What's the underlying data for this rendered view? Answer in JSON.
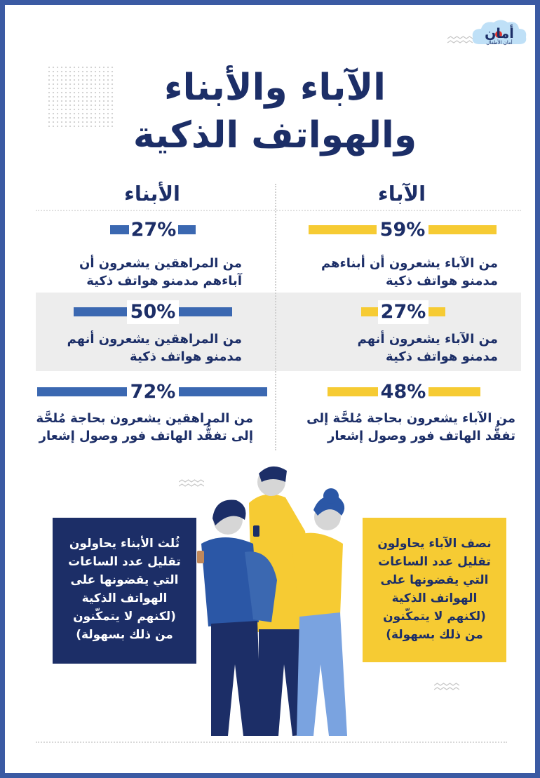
{
  "logo": {
    "name": "أمان",
    "subtitle": "أمان الأطفال"
  },
  "title": {
    "line1": "الآباء والأبناء",
    "line2": "والهواتف الذكية"
  },
  "columns": {
    "parents": "الآباء",
    "kids": "الأبناء"
  },
  "colors": {
    "parents": "#f6cb33",
    "kids": "#3b68b1",
    "navy": "#1c2e67"
  },
  "parents": [
    {
      "pct": "59%",
      "line1": "من الآباء يشعرون أن أبناءهم",
      "line2": "مدمنو هواتف ذكية"
    },
    {
      "pct": "27%",
      "line1": "من الآباء يشعرون أنهم",
      "line2": "مدمنو هواتف ذكية"
    },
    {
      "pct": "48%",
      "line1": "من الآباء يشعرون بحاجة مُلحَّة إلى",
      "line2": "تفقُّد الهاتف فور وصول إشعار"
    }
  ],
  "kids": [
    {
      "pct": "27%",
      "line1": "من المراهقين يشعرون أن",
      "line2": "آباءهم مدمنو هواتف ذكية"
    },
    {
      "pct": "50%",
      "line1": "من المراهقين يشعرون أنهم",
      "line2": "مدمنو هواتف ذكية"
    },
    {
      "pct": "72%",
      "line1": "من المراهقين يشعرون بحاجة مُلحَّة",
      "line2": "إلى تفقُّد الهاتف فور وصول إشعار"
    }
  ],
  "boxes": {
    "kids": [
      "ثُلث الأبناء يحاولون",
      "تقليل عدد الساعات",
      "التي يقضونها على",
      "الهواتف الذكية",
      "(لكنهم لا يتمكّنون",
      "من ذلك بسهولة)"
    ],
    "parents": [
      "نصف الآباء يحاولون",
      "تقليل عدد الساعات",
      "التي يقضونها على",
      "الهواتف الذكية",
      "(لكنهم لا يتمكّنون",
      "من ذلك بسهولة)"
    ]
  }
}
